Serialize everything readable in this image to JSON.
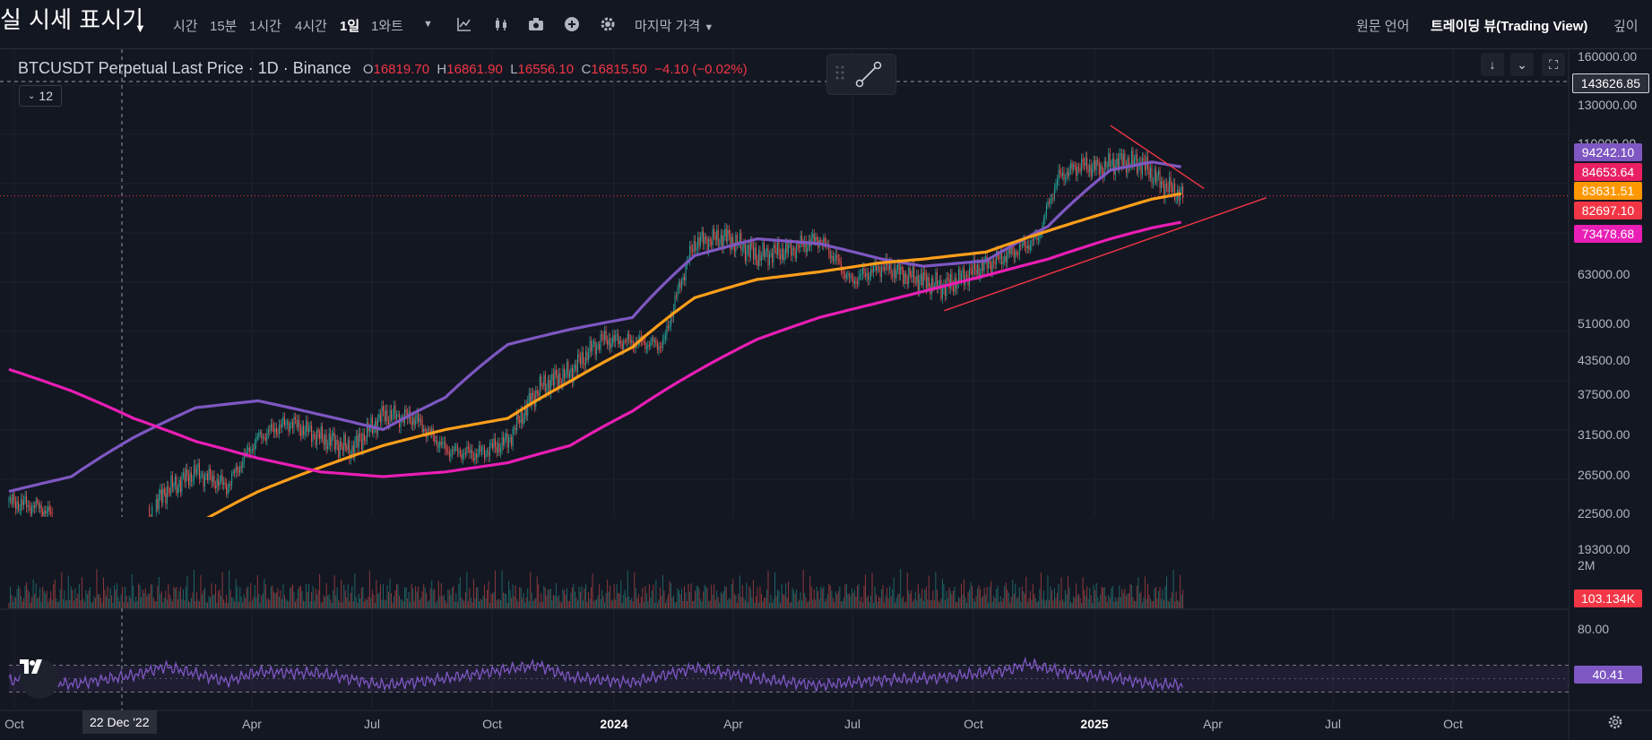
{
  "topbar": {
    "title": "실 시세 표시기",
    "intervals": [
      "시간",
      "15분",
      "1시간",
      "4시간",
      "1일",
      "1와트"
    ],
    "active_interval": "1일",
    "price_type": "마지막 가격",
    "right_items": [
      "원문 언어",
      "트레이딩 뷰(Trading View)",
      "깊이"
    ]
  },
  "legend": {
    "symbol": "BTCUSDT Perpetual Last Price · 1D · Binance",
    "open": "16819.70",
    "high": "16861.90",
    "low": "16556.10",
    "close": "16815.50",
    "change": "−4.10 (−0.02%)",
    "indicator_count": "12"
  },
  "y_axis_labels": [
    "160000.00",
    "130000.00",
    "110000.00",
    "63000.00",
    "51000.00",
    "43500.00",
    "37500.00",
    "31500.00",
    "26500.00",
    "22500.00",
    "19300.00"
  ],
  "volume_axis_label": "2M",
  "rsi_axis_label": "80.00",
  "price_tags": {
    "crosshair": "143626.85",
    "ma_purple": "94242.10",
    "ma_pink_red": "84653.64",
    "ma_orange": "83631.51",
    "last_price": "82697.10",
    "ma_magenta": "73478.68",
    "volume": "103.134K",
    "rsi": "40.41"
  },
  "x_axis_labels": [
    "Oct",
    "Apr",
    "Jul",
    "Oct",
    "2024",
    "Apr",
    "Jul",
    "Oct",
    "2025",
    "Apr",
    "Jul",
    "Oct"
  ],
  "x_cursor_label": "22 Dec '22",
  "colors": {
    "background": "#131722",
    "ma_purple": "#7e57c2",
    "ma_orange": "#ff9f1a",
    "ma_magenta": "#e91eb4",
    "candle_up": "#26a69a",
    "candle_down": "#ef5350",
    "trendline": "#f23645",
    "rsi": "#7e57c2"
  },
  "chart_data": {
    "type": "line",
    "title": "BTCUSDT Perpetual Last Price · 1D · Binance",
    "xlabel": "",
    "ylabel": "",
    "scale": "log",
    "series": [
      {
        "values": [
          [
            0,
            21500
          ],
          [
            60,
            23000
          ],
          [
            120,
            27500
          ],
          [
            180,
            31500
          ],
          [
            240,
            32500
          ],
          [
            300,
            30500
          ],
          [
            360,
            28500
          ],
          [
            420,
            33000
          ],
          [
            480,
            42000
          ],
          [
            540,
            45000
          ],
          [
            600,
            47500
          ],
          [
            660,
            63000
          ],
          [
            720,
            68000
          ],
          [
            780,
            66500
          ],
          [
            840,
            62000
          ],
          [
            880,
            60000
          ],
          [
            940,
            61500
          ],
          [
            1000,
            72000
          ],
          [
            1060,
            93000
          ],
          [
            1100,
            96500
          ],
          [
            1130,
            94242.1
          ]
        ]
      },
      {
        "values": [
          [
            0,
            19000
          ],
          [
            120,
            17500
          ],
          [
            180,
            18500
          ],
          [
            240,
            21500
          ],
          [
            300,
            24000
          ],
          [
            360,
            26500
          ],
          [
            420,
            28500
          ],
          [
            480,
            30000
          ],
          [
            540,
            35500
          ],
          [
            600,
            41500
          ],
          [
            660,
            52000
          ],
          [
            720,
            56500
          ],
          [
            780,
            58500
          ],
          [
            840,
            61000
          ],
          [
            880,
            62000
          ],
          [
            940,
            64000
          ],
          [
            1000,
            70500
          ],
          [
            1060,
            77000
          ],
          [
            1100,
            81500
          ],
          [
            1130,
            83631.51
          ]
        ]
      },
      {
        "values": [
          [
            0,
            37500
          ],
          [
            60,
            34000
          ],
          [
            120,
            30000
          ],
          [
            180,
            27000
          ],
          [
            240,
            25000
          ],
          [
            300,
            23500
          ],
          [
            360,
            23000
          ],
          [
            420,
            23500
          ],
          [
            480,
            24500
          ],
          [
            540,
            26500
          ],
          [
            600,
            31000
          ],
          [
            660,
            37000
          ],
          [
            720,
            43000
          ],
          [
            780,
            47500
          ],
          [
            840,
            51000
          ],
          [
            880,
            53500
          ],
          [
            940,
            57500
          ],
          [
            1000,
            62000
          ],
          [
            1060,
            68000
          ],
          [
            1100,
            71500
          ],
          [
            1130,
            73478.68
          ]
        ]
      },
      {
        "values": [
          [
            0,
            20500
          ],
          [
            30,
            20000
          ],
          [
            60,
            18000
          ],
          [
            90,
            16800
          ],
          [
            120,
            16800
          ],
          [
            150,
            21500
          ],
          [
            180,
            23500
          ],
          [
            210,
            22000
          ],
          [
            240,
            27500
          ],
          [
            270,
            29500
          ],
          [
            300,
            27500
          ],
          [
            330,
            26000
          ],
          [
            360,
            30500
          ],
          [
            390,
            30000
          ],
          [
            420,
            26000
          ],
          [
            450,
            25500
          ],
          [
            480,
            27000
          ],
          [
            510,
            34500
          ],
          [
            540,
            37000
          ],
          [
            570,
            43000
          ],
          [
            600,
            42500
          ],
          [
            630,
            42000
          ],
          [
            660,
            67000
          ],
          [
            690,
            68500
          ],
          [
            720,
            63000
          ],
          [
            750,
            64500
          ],
          [
            780,
            68000
          ],
          [
            810,
            56000
          ],
          [
            840,
            60000
          ],
          [
            870,
            57000
          ],
          [
            900,
            54500
          ],
          [
            930,
            59000
          ],
          [
            960,
            63000
          ],
          [
            990,
            68000
          ],
          [
            1010,
            90000
          ],
          [
            1030,
            95000
          ],
          [
            1050,
            94000
          ],
          [
            1070,
            97000
          ],
          [
            1090,
            96000
          ],
          [
            1110,
            87000
          ],
          [
            1130,
            82697.1
          ]
        ]
      }
    ],
    "rsi": [
      [
        0,
        48
      ],
      [
        60,
        42
      ],
      [
        120,
        55
      ],
      [
        150,
        68
      ],
      [
        210,
        46
      ],
      [
        240,
        60
      ],
      [
        300,
        58
      ],
      [
        360,
        40
      ],
      [
        420,
        50
      ],
      [
        480,
        64
      ],
      [
        510,
        70
      ],
      [
        540,
        52
      ],
      [
        600,
        44
      ],
      [
        660,
        66
      ],
      [
        720,
        50
      ],
      [
        780,
        40
      ],
      [
        840,
        48
      ],
      [
        900,
        52
      ],
      [
        960,
        62
      ],
      [
        980,
        72
      ],
      [
        1020,
        58
      ],
      [
        1060,
        52
      ],
      [
        1100,
        42
      ],
      [
        1130,
        40.41
      ]
    ],
    "rsi_levels": [
      70,
      30
    ]
  }
}
